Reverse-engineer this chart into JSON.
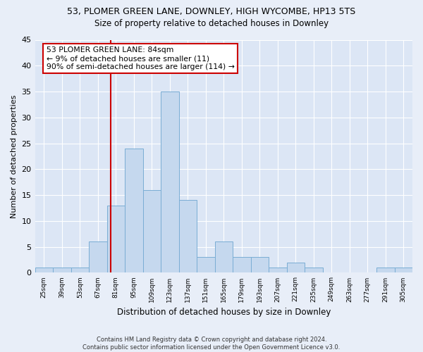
{
  "title": "53, PLOMER GREEN LANE, DOWNLEY, HIGH WYCOMBE, HP13 5TS",
  "subtitle": "Size of property relative to detached houses in Downley",
  "xlabel": "Distribution of detached houses by size in Downley",
  "ylabel": "Number of detached properties",
  "bin_starts": [
    25,
    39,
    53,
    67,
    81,
    95,
    109,
    123,
    137,
    151,
    165,
    179,
    193,
    207,
    221,
    235,
    249,
    263,
    277,
    291,
    305
  ],
  "bin_width": 14,
  "bar_heights": [
    1,
    1,
    1,
    6,
    13,
    24,
    16,
    35,
    14,
    3,
    6,
    3,
    3,
    1,
    2,
    1,
    0,
    0,
    0,
    1,
    1
  ],
  "bar_color": "#c5d8ee",
  "bar_edge_color": "#7aadd4",
  "property_size": 84,
  "vline_color": "#cc0000",
  "annotation_line1": "53 PLOMER GREEN LANE: 84sqm",
  "annotation_line2": "← 9% of detached houses are smaller (11)",
  "annotation_line3": "90% of semi-detached houses are larger (114) →",
  "annotation_box_color": "#ffffff",
  "annotation_box_edge_color": "#cc0000",
  "ylim": [
    0,
    45
  ],
  "yticks": [
    0,
    5,
    10,
    15,
    20,
    25,
    30,
    35,
    40,
    45
  ],
  "footer_text": "Contains HM Land Registry data © Crown copyright and database right 2024.\nContains public sector information licensed under the Open Government Licence v3.0.",
  "bg_color": "#e8eef8",
  "plot_bg_color": "#dce6f5"
}
